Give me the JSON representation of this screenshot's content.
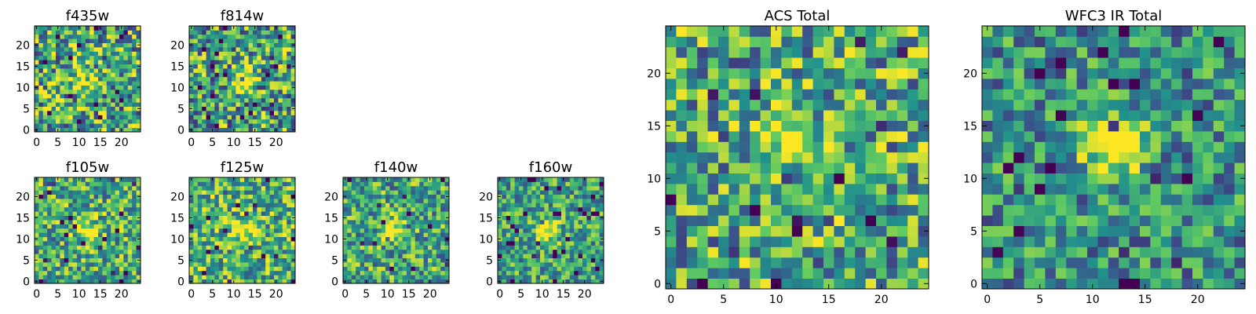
{
  "chart_data": [
    {
      "type": "heatmap",
      "title": "f435w",
      "grid_size": 25,
      "xlim": [
        0,
        24
      ],
      "ylim": [
        0,
        24
      ],
      "xticks": [
        0,
        5,
        10,
        15,
        20
      ],
      "yticks": [
        0,
        5,
        10,
        15,
        20
      ],
      "source_peak": [
        11,
        12
      ],
      "peak_strength": 0.35,
      "noise": 0.55,
      "mean_level": 0.6,
      "seed": 11
    },
    {
      "type": "heatmap",
      "title": "f814w",
      "grid_size": 25,
      "xlim": [
        0,
        24
      ],
      "ylim": [
        0,
        24
      ],
      "xticks": [
        0,
        5,
        10,
        15,
        20
      ],
      "yticks": [
        0,
        5,
        10,
        15,
        20
      ],
      "source_peak": [
        12,
        12
      ],
      "peak_strength": 0.45,
      "noise": 0.55,
      "mean_level": 0.58,
      "seed": 23
    },
    {
      "type": "heatmap",
      "title": "f105w",
      "grid_size": 25,
      "xlim": [
        0,
        24
      ],
      "ylim": [
        0,
        24
      ],
      "xticks": [
        0,
        5,
        10,
        15,
        20
      ],
      "yticks": [
        0,
        5,
        10,
        15,
        20
      ],
      "source_peak": [
        12,
        12
      ],
      "peak_strength": 0.4,
      "noise": 0.45,
      "mean_level": 0.62,
      "seed": 37
    },
    {
      "type": "heatmap",
      "title": "f125w",
      "grid_size": 25,
      "xlim": [
        0,
        24
      ],
      "ylim": [
        0,
        24
      ],
      "xticks": [
        0,
        5,
        10,
        15,
        20
      ],
      "yticks": [
        0,
        5,
        10,
        15,
        20
      ],
      "source_peak": [
        12,
        12
      ],
      "peak_strength": 0.4,
      "noise": 0.45,
      "mean_level": 0.64,
      "seed": 41
    },
    {
      "type": "heatmap",
      "title": "f140w",
      "grid_size": 25,
      "xlim": [
        0,
        24
      ],
      "ylim": [
        0,
        24
      ],
      "xticks": [
        0,
        5,
        10,
        15,
        20
      ],
      "yticks": [
        0,
        5,
        10,
        15,
        20
      ],
      "source_peak": [
        12,
        12
      ],
      "peak_strength": 0.45,
      "noise": 0.45,
      "mean_level": 0.6,
      "seed": 53
    },
    {
      "type": "heatmap",
      "title": "f160w",
      "grid_size": 25,
      "xlim": [
        0,
        24
      ],
      "ylim": [
        0,
        24
      ],
      "xticks": [
        0,
        5,
        10,
        15,
        20
      ],
      "yticks": [
        0,
        5,
        10,
        15,
        20
      ],
      "source_peak": [
        11,
        12
      ],
      "peak_strength": 0.55,
      "noise": 0.4,
      "mean_level": 0.58,
      "seed": 67
    },
    {
      "type": "heatmap",
      "title": "ACS Total",
      "grid_size": 25,
      "xlim": [
        0,
        24
      ],
      "ylim": [
        0,
        24
      ],
      "xticks": [
        0,
        5,
        10,
        15,
        20
      ],
      "yticks": [
        0,
        5,
        10,
        15,
        20
      ],
      "source_peak": [
        11,
        14
      ],
      "peak_strength": 0.45,
      "noise": 0.5,
      "mean_level": 0.6,
      "seed": 79
    },
    {
      "type": "heatmap",
      "title": "WFC3 IR Total",
      "grid_size": 25,
      "xlim": [
        0,
        24
      ],
      "ylim": [
        0,
        24
      ],
      "xticks": [
        0,
        5,
        10,
        15,
        20
      ],
      "yticks": [
        0,
        5,
        10,
        15,
        20
      ],
      "source_peak": [
        12,
        13
      ],
      "peak_strength": 0.65,
      "noise": 0.4,
      "mean_level": 0.5,
      "seed": 97
    }
  ],
  "colormap": [
    "#440154",
    "#3b528b",
    "#21918c",
    "#5ec962",
    "#fde725"
  ]
}
